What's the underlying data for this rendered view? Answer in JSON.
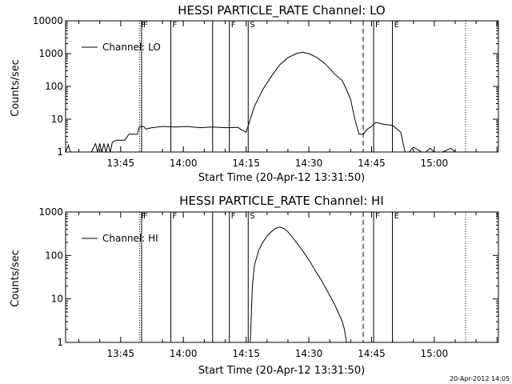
{
  "footer": {
    "timestamp": "20-Apr-2012 14:05"
  },
  "chart_data": [
    {
      "type": "line",
      "title": "HESSI PARTICLE_RATE Channel: LO",
      "xlabel": "Start Time (20-Apr-12 13:31:50)",
      "ylabel": "Counts/sec",
      "y_scale": "log",
      "ylim": [
        1,
        10000
      ],
      "xlim": [
        "13:31:50",
        "15:15:20"
      ],
      "yticks": [
        "1",
        "10",
        "100",
        "1000",
        "10000"
      ],
      "xticks": [
        "13:45",
        "14:00",
        "14:15",
        "14:30",
        "14:45",
        "15:00"
      ],
      "legend": {
        "position": "top-left"
      },
      "series": [
        {
          "name": "Channel: LO",
          "x": [
            "13:31:50",
            "13:32:30",
            "13:33:00",
            "13:38:00",
            "13:39:00",
            "13:39:30",
            "13:40:00",
            "13:40:30",
            "13:41:00",
            "13:41:30",
            "13:42:00",
            "13:42:30",
            "13:43:00",
            "13:44:00",
            "13:45:00",
            "13:46:00",
            "13:47:00",
            "13:48:00",
            "13:49:00",
            "13:49:30",
            "13:50:30",
            "13:51:00",
            "13:52:30",
            "13:55:00",
            "13:58:00",
            "14:01:00",
            "14:04:00",
            "14:07:00",
            "14:10:00",
            "14:13:00",
            "14:15:00",
            "14:16:00",
            "14:17:00",
            "14:19:00",
            "14:21:00",
            "14:23:00",
            "14:25:00",
            "14:27:00",
            "14:28:30",
            "14:30:00",
            "14:32:00",
            "14:34:00",
            "14:36:00",
            "14:38:00",
            "14:39:00",
            "14:40:00",
            "14:41:00",
            "14:42:00",
            "14:43:00",
            "14:44:00",
            "14:45:00",
            "14:46:00",
            "14:48:00",
            "14:50:00",
            "14:52:00",
            "14:53:00",
            "14:54:00",
            "14:55:00",
            "14:57:00",
            "14:58:00",
            "14:59:00",
            "15:00:00",
            "15:02:00",
            "15:04:00",
            "15:05:00",
            "15:06:00"
          ],
          "y": [
            1,
            1.6,
            1,
            1,
            1.8,
            1,
            1.8,
            1,
            1.8,
            1,
            1.8,
            1,
            2,
            2.3,
            2.3,
            2.3,
            3.5,
            3.5,
            3.5,
            6,
            6,
            5,
            5.5,
            6,
            5.8,
            6,
            5.5,
            5.8,
            5.5,
            5.6,
            4,
            10,
            25,
            80,
            200,
            450,
            750,
            1000,
            1100,
            1000,
            750,
            480,
            250,
            150,
            80,
            40,
            10,
            3.5,
            3.5,
            5,
            6,
            8,
            7,
            6.5,
            4,
            1,
            1,
            1.4,
            1,
            1,
            1.3,
            1,
            1,
            1.3,
            1,
            1
          ]
        }
      ],
      "markers": [
        {
          "time": "13:49:30",
          "style": "dotted",
          "flag": "F"
        },
        {
          "time": "13:50:00",
          "style": "solid",
          "flag": "F"
        },
        {
          "time": "13:57:00",
          "style": "solid",
          "flag": "F"
        },
        {
          "time": "14:07:00",
          "style": "solid",
          "flag": ""
        },
        {
          "time": "14:11:00",
          "style": "solid",
          "flag": "F"
        },
        {
          "time": "14:15:30",
          "style": "solid",
          "flag": "S"
        },
        {
          "time": "14:43:00",
          "style": "dashed",
          "flag": ""
        },
        {
          "time": "14:45:30",
          "style": "solid",
          "flag": "F"
        },
        {
          "time": "14:50:00",
          "style": "solid",
          "flag": "E"
        },
        {
          "time": "15:07:30",
          "style": "dotted",
          "flag": ""
        }
      ]
    },
    {
      "type": "line",
      "title": "HESSI PARTICLE_RATE Channel: HI",
      "xlabel": "Start Time (20-Apr-12 13:31:50)",
      "ylabel": "Counts/sec",
      "y_scale": "log",
      "ylim": [
        1,
        1000
      ],
      "xlim": [
        "13:31:50",
        "15:15:20"
      ],
      "yticks": [
        "1",
        "10",
        "100",
        "1000"
      ],
      "xticks": [
        "13:45",
        "14:00",
        "14:15",
        "14:30",
        "14:45",
        "15:00"
      ],
      "legend": {
        "position": "top-left"
      },
      "series": [
        {
          "name": "Channel: HI",
          "x": [
            "14:16:00",
            "14:16:30",
            "14:17:00",
            "14:18:00",
            "14:19:00",
            "14:20:00",
            "14:21:00",
            "14:22:00",
            "14:23:00",
            "14:24:00",
            "14:25:00",
            "14:26:00",
            "14:27:00",
            "14:28:00",
            "14:29:00",
            "14:30:00",
            "14:31:00",
            "14:32:00",
            "14:33:00",
            "14:34:00",
            "14:35:00",
            "14:36:00",
            "14:37:00",
            "14:38:00",
            "14:38:30",
            "14:39:00"
          ],
          "y": [
            1,
            20,
            60,
            130,
            200,
            280,
            350,
            420,
            450,
            420,
            350,
            270,
            200,
            150,
            110,
            80,
            55,
            38,
            27,
            18,
            12,
            8,
            5,
            3,
            2,
            1
          ]
        }
      ],
      "markers": [
        {
          "time": "13:49:30",
          "style": "dotted",
          "flag": "F"
        },
        {
          "time": "13:50:00",
          "style": "solid",
          "flag": "F"
        },
        {
          "time": "13:57:00",
          "style": "solid",
          "flag": "F"
        },
        {
          "time": "14:07:00",
          "style": "solid",
          "flag": ""
        },
        {
          "time": "14:11:00",
          "style": "solid",
          "flag": "F"
        },
        {
          "time": "14:15:30",
          "style": "solid",
          "flag": "S"
        },
        {
          "time": "14:43:00",
          "style": "dashed",
          "flag": ""
        },
        {
          "time": "14:45:30",
          "style": "solid",
          "flag": "F"
        },
        {
          "time": "14:50:00",
          "style": "solid",
          "flag": "E"
        },
        {
          "time": "15:07:30",
          "style": "dotted",
          "flag": ""
        }
      ]
    }
  ]
}
